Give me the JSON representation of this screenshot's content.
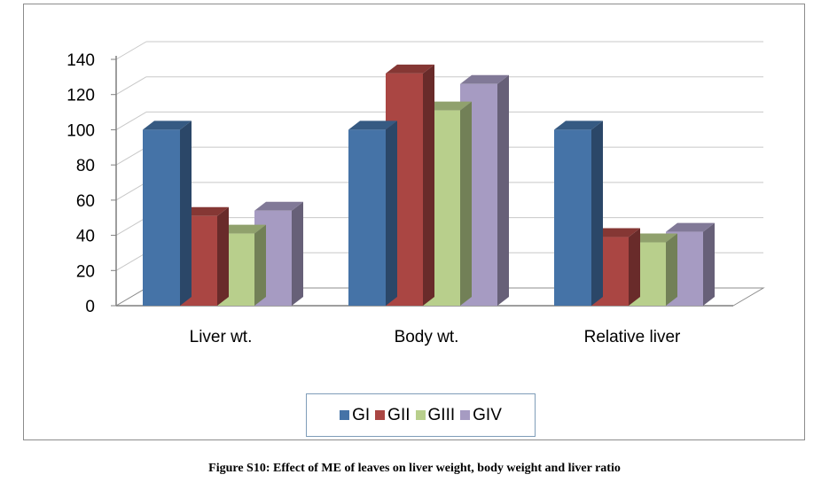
{
  "caption": "Figure S10: Effect of ME of leaves on liver weight, body weight and liver ratio",
  "chart_data": {
    "type": "bar",
    "style": "3d-clustered",
    "categories": [
      "Liver wt.",
      "Body wt.",
      "Relative liver"
    ],
    "series": [
      {
        "name": "GI",
        "color": "#4573a7",
        "values": [
          100,
          100,
          100
        ]
      },
      {
        "name": "GII",
        "color": "#aa4643",
        "values": [
          51,
          132,
          39
        ]
      },
      {
        "name": "GIII",
        "color": "#b8cf8c",
        "values": [
          41,
          111,
          36
        ]
      },
      {
        "name": "GIV",
        "color": "#a69bc2",
        "values": [
          54,
          126,
          42
        ]
      }
    ],
    "ylim": [
      0,
      140
    ],
    "yticks": [
      "0",
      "20",
      "40",
      "60",
      "80",
      "100",
      "120",
      "140"
    ],
    "grid": true,
    "legend": "bottom"
  }
}
